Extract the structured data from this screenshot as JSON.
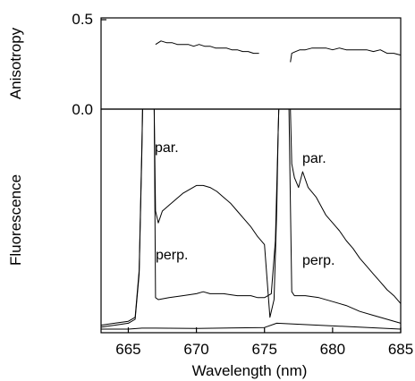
{
  "chart_data": [
    {
      "type": "line",
      "panel": "top",
      "ylabel": "Anisotropy",
      "ylim": [
        0.0,
        0.5
      ],
      "yticks": [
        "0.5",
        "0.0"
      ],
      "xlim": [
        663,
        685
      ],
      "series": [
        {
          "x": [
            667.0,
            667.4,
            667.8,
            668.2,
            668.6,
            669.0,
            669.4,
            669.8,
            670.2,
            670.6,
            671.0,
            671.4,
            671.8,
            672.2,
            672.6,
            673.0,
            673.4,
            673.8,
            674.2,
            674.6
          ],
          "y": [
            0.36,
            0.38,
            0.37,
            0.37,
            0.36,
            0.36,
            0.36,
            0.35,
            0.36,
            0.35,
            0.35,
            0.34,
            0.34,
            0.34,
            0.33,
            0.33,
            0.32,
            0.32,
            0.31,
            0.31
          ]
        },
        {
          "x": [
            676.9,
            677.0,
            677.3,
            677.6,
            678.0,
            678.5,
            679.0,
            679.5,
            680.0,
            680.5,
            681.0,
            681.5,
            682.0,
            682.5,
            683.0,
            683.5,
            684.0,
            684.5,
            685.0
          ],
          "y": [
            0.26,
            0.31,
            0.32,
            0.33,
            0.33,
            0.34,
            0.34,
            0.34,
            0.33,
            0.34,
            0.33,
            0.33,
            0.33,
            0.33,
            0.32,
            0.33,
            0.31,
            0.31,
            0.3
          ]
        }
      ]
    },
    {
      "type": "line",
      "panel": "bottom",
      "xlabel": "Wavelength (nm)",
      "ylabel": "Fluorescence",
      "xlim": [
        663,
        685
      ],
      "xticks": [
        665,
        670,
        675,
        680,
        685
      ],
      "ylim": [
        0,
        100
      ],
      "annotations": [
        "par.",
        "perp.",
        "par.",
        "perp."
      ],
      "series": [
        {
          "name": "par.",
          "x": [
            663.0,
            664.0,
            665.0,
            665.5,
            665.8,
            666.0,
            666.05,
            666.9,
            667.0,
            667.2,
            667.5,
            668.0,
            668.5,
            669.0,
            669.5,
            670.0,
            670.5,
            671.0,
            671.5,
            672.0,
            672.5,
            673.0,
            673.5,
            674.0,
            674.5,
            675.0,
            675.4,
            675.7,
            675.9,
            676.0,
            676.05,
            676.9,
            677.0,
            677.2,
            677.5,
            677.8,
            678.2,
            678.8,
            679.5,
            680.0,
            680.5,
            681.0,
            681.5,
            682.0,
            682.5,
            683.0,
            683.5,
            684.0,
            684.5,
            685.0
          ],
          "y": [
            2,
            3,
            4,
            6,
            30,
            95,
            112,
            112,
            60,
            54,
            60,
            63,
            66,
            69,
            71,
            73,
            73,
            72,
            70,
            67,
            64,
            60,
            56,
            52,
            47,
            43,
            6,
            15,
            60,
            100,
            112,
            112,
            84,
            77,
            72,
            80,
            72,
            67,
            58,
            54,
            50,
            45,
            41,
            36,
            32,
            28,
            24,
            20,
            17,
            13
          ]
        },
        {
          "name": "perp.",
          "x": [
            663.0,
            664.0,
            665.0,
            665.5,
            665.8,
            666.0,
            666.05,
            666.9,
            667.0,
            667.2,
            668.0,
            669.0,
            670.0,
            670.5,
            671.0,
            672.0,
            673.0,
            674.0,
            674.5,
            675.0,
            675.5,
            675.8,
            676.0,
            676.05,
            676.8,
            677.0,
            677.2,
            678.0,
            679.0,
            680.0,
            681.0,
            682.0,
            683.0,
            684.0,
            685.0
          ],
          "y": [
            1,
            2,
            3,
            5,
            28,
            92,
            112,
            112,
            16,
            15,
            16,
            17,
            18,
            19,
            18,
            18,
            17,
            17,
            16,
            16,
            18,
            45,
            100,
            112,
            112,
            19,
            17,
            17,
            16,
            14,
            12,
            9,
            7,
            5,
            3
          ]
        },
        {
          "name": "baseline",
          "x": [
            663.0,
            665.0,
            666.0,
            667.0,
            670.0,
            675.0,
            675.9,
            685.0
          ],
          "y": [
            0,
            0,
            0.5,
            0.5,
            0.3,
            0.8,
            3,
            0
          ]
        }
      ]
    }
  ]
}
